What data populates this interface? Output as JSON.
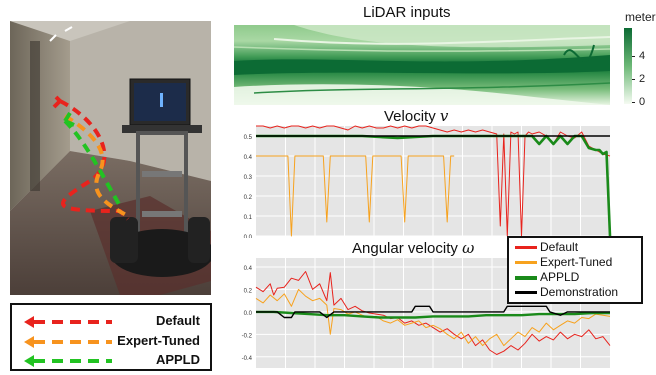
{
  "photo": {
    "description_icon": "robot-photo",
    "legend": [
      {
        "label": "Default",
        "color": "#e8231d"
      },
      {
        "label": "Expert-Tuned",
        "color": "#f7931e"
      },
      {
        "label": "APPLD",
        "color": "#22c322"
      }
    ]
  },
  "lidar": {
    "title": "LiDAR inputs",
    "colorbar_unit": "meter",
    "colorbar_ticks": [
      "4",
      "2",
      "0"
    ],
    "colormap": [
      "#f5fbf2",
      "#0c6b34"
    ]
  },
  "chart_legend": [
    {
      "label": "Default",
      "color": "#e8231d"
    },
    {
      "label": "Expert-Tuned",
      "color": "#f7a21e"
    },
    {
      "label": "APPLD",
      "color": "#1a8a1a"
    },
    {
      "label": "Demonstration",
      "color": "#000000"
    }
  ],
  "chart_data": [
    {
      "type": "line",
      "title": "Velocity",
      "title_symbol": "v",
      "yticks": [
        "0.5",
        "0.4",
        "0.3",
        "0.2",
        "0.1",
        "0.0"
      ],
      "ylim": [
        0.0,
        0.55
      ],
      "xlim": [
        0,
        100
      ],
      "grid": true,
      "series": [
        {
          "name": "Default",
          "color": "#e8231d",
          "width": 1,
          "x": [
            0,
            2,
            4,
            6,
            8,
            10,
            12,
            14,
            16,
            18,
            20,
            22,
            24,
            26,
            28,
            30,
            32,
            34,
            36,
            38,
            40,
            42,
            44,
            46,
            48,
            50,
            52,
            54,
            56,
            58,
            60,
            62,
            64,
            66,
            68,
            69,
            70,
            71,
            72,
            73,
            74,
            75,
            76,
            77,
            78,
            80,
            82,
            84,
            86,
            88,
            90,
            92,
            94,
            96,
            98,
            100
          ],
          "y": [
            0.55,
            0.55,
            0.54,
            0.55,
            0.54,
            0.55,
            0.55,
            0.54,
            0.55,
            0.54,
            0.55,
            0.55,
            0.54,
            0.53,
            0.55,
            0.54,
            0.55,
            0.54,
            0.54,
            0.55,
            0.54,
            0.55,
            0.54,
            0.55,
            0.55,
            0.54,
            0.53,
            0.52,
            0.53,
            0.52,
            0.53,
            0.52,
            0.53,
            0.52,
            0.51,
            0.05,
            0.51,
            0.0,
            0.52,
            0.51,
            0.52,
            0.0,
            0.5,
            0.52,
            0.51,
            0.52,
            0.5,
            0.46,
            0.52,
            0.5,
            0.49,
            0.52,
            0.45,
            0.43,
            0.41,
            0.4
          ]
        },
        {
          "name": "Expert-Tuned",
          "color": "#f7a21e",
          "width": 1,
          "x": [
            0,
            1,
            9,
            10,
            11,
            12,
            13,
            14,
            18,
            19,
            20,
            21,
            22,
            30,
            31,
            32,
            33,
            34,
            40,
            41,
            42,
            43,
            44,
            52,
            53,
            54,
            55,
            56
          ],
          "y": [
            0.4,
            0.4,
            0.4,
            0.0,
            0.4,
            0.4,
            0.4,
            0.4,
            0.4,
            0.4,
            0.07,
            0.4,
            0.4,
            0.4,
            0.4,
            0.07,
            0.4,
            0.4,
            0.4,
            0.4,
            0.07,
            0.4,
            0.4,
            0.4,
            0.4,
            0.07,
            0.4,
            0.4
          ]
        },
        {
          "name": "APPLD",
          "color": "#1a8a1a",
          "width": 2.6,
          "x": [
            0,
            10,
            20,
            30,
            40,
            50,
            60,
            70,
            78,
            80,
            82,
            84,
            86,
            88,
            90,
            92,
            94,
            96,
            97,
            98,
            99,
            100
          ],
          "y": [
            0.5,
            0.5,
            0.5,
            0.5,
            0.49,
            0.5,
            0.5,
            0.5,
            0.5,
            0.46,
            0.5,
            0.46,
            0.5,
            0.46,
            0.5,
            0.5,
            0.44,
            0.43,
            0.43,
            0.41,
            0.42,
            0.0
          ]
        },
        {
          "name": "Demonstration",
          "color": "#000000",
          "width": 1.4,
          "x": [
            0,
            20,
            40,
            60,
            80,
            90,
            100
          ],
          "y": [
            0.5,
            0.5,
            0.5,
            0.5,
            0.5,
            0.5,
            0.5
          ]
        }
      ]
    },
    {
      "type": "line",
      "title": "Angular velocity",
      "title_symbol": "ω",
      "yticks": [
        "0.4",
        "0.2",
        "0.0",
        "-0.2",
        "-0.4"
      ],
      "ylim": [
        -0.5,
        0.48
      ],
      "xlim": [
        0,
        100
      ],
      "grid": true,
      "series": [
        {
          "name": "Default",
          "color": "#e8231d",
          "width": 1,
          "x": [
            0,
            2,
            4,
            5,
            6,
            8,
            10,
            12,
            14,
            16,
            18,
            20,
            21,
            22,
            24,
            26,
            28,
            30,
            32,
            34,
            36,
            38,
            40,
            42,
            44,
            46,
            48,
            50,
            52,
            54,
            56,
            58,
            60,
            62,
            64,
            66,
            68,
            70,
            72,
            74,
            76,
            78,
            80,
            82,
            84,
            86,
            88,
            90,
            92,
            94,
            96,
            98,
            100
          ],
          "y": [
            0.22,
            0.18,
            0.25,
            0.15,
            0.21,
            0.22,
            0.3,
            0.28,
            0.36,
            0.2,
            0.25,
            0.1,
            0.35,
            0.06,
            0.12,
            0.02,
            0.05,
            0.01,
            -0.01,
            -0.02,
            -0.03,
            -0.06,
            -0.05,
            -0.1,
            -0.08,
            -0.12,
            -0.1,
            -0.14,
            -0.18,
            -0.15,
            -0.2,
            -0.24,
            -0.2,
            -0.3,
            -0.25,
            -0.34,
            -0.38,
            -0.35,
            -0.3,
            -0.34,
            -0.28,
            -0.2,
            -0.26,
            -0.22,
            -0.25,
            -0.18,
            -0.24,
            -0.2,
            -0.22,
            -0.16,
            -0.24,
            -0.22,
            -0.3
          ]
        },
        {
          "name": "Expert-Tuned",
          "color": "#f7a21e",
          "width": 1,
          "x": [
            0,
            2,
            4,
            6,
            8,
            10,
            12,
            14,
            16,
            18,
            20,
            21,
            22,
            24,
            26,
            28,
            30,
            32,
            34,
            36,
            38,
            40,
            42,
            44,
            46,
            48,
            50,
            52,
            54,
            56,
            58,
            60,
            62,
            64,
            66,
            68,
            70,
            72,
            74,
            76,
            78,
            80,
            82,
            84,
            86,
            88,
            90,
            92,
            94,
            96,
            98,
            100
          ],
          "y": [
            0.12,
            0.08,
            0.15,
            0.1,
            0.16,
            0.05,
            0.2,
            0.14,
            0.1,
            0.12,
            0.06,
            -0.2,
            0.03,
            0.02,
            -0.02,
            0.0,
            -0.03,
            -0.05,
            -0.04,
            -0.08,
            -0.1,
            -0.07,
            -0.12,
            -0.1,
            -0.08,
            -0.14,
            -0.12,
            -0.15,
            -0.2,
            -0.24,
            -0.18,
            -0.28,
            -0.22,
            -0.3,
            -0.24,
            -0.2,
            -0.3,
            -0.24,
            -0.18,
            -0.22,
            -0.14,
            -0.18,
            -0.1,
            -0.16,
            -0.12,
            -0.08,
            -0.1,
            -0.05,
            -0.06,
            -0.02,
            -0.03,
            -0.04
          ]
        },
        {
          "name": "APPLD",
          "color": "#1a8a1a",
          "width": 2.4,
          "x": [
            0,
            5,
            10,
            15,
            20,
            25,
            30,
            35,
            40,
            45,
            50,
            55,
            60,
            65,
            70,
            75,
            80,
            85,
            90,
            95,
            100
          ],
          "y": [
            0.0,
            0.0,
            -0.01,
            -0.02,
            -0.03,
            -0.03,
            -0.04,
            -0.05,
            -0.05,
            -0.05,
            -0.04,
            -0.04,
            -0.04,
            -0.03,
            -0.03,
            -0.03,
            -0.02,
            -0.02,
            -0.02,
            -0.01,
            -0.01
          ]
        },
        {
          "name": "Demonstration",
          "color": "#000000",
          "width": 1.4,
          "x": [
            0,
            6,
            8,
            10,
            11,
            12,
            18,
            20,
            22,
            30,
            40,
            44,
            45,
            49,
            50,
            60,
            70,
            71,
            72,
            80,
            82,
            83,
            86,
            88,
            90,
            100
          ],
          "y": [
            0.0,
            0.0,
            -0.05,
            -0.05,
            0.0,
            0.0,
            0.0,
            -0.05,
            0.0,
            0.0,
            0.0,
            0.0,
            0.05,
            0.05,
            0.0,
            0.0,
            0.0,
            0.05,
            0.05,
            0.05,
            0.05,
            0.0,
            -0.03,
            0.0,
            0.0,
            0.0
          ]
        }
      ]
    }
  ]
}
